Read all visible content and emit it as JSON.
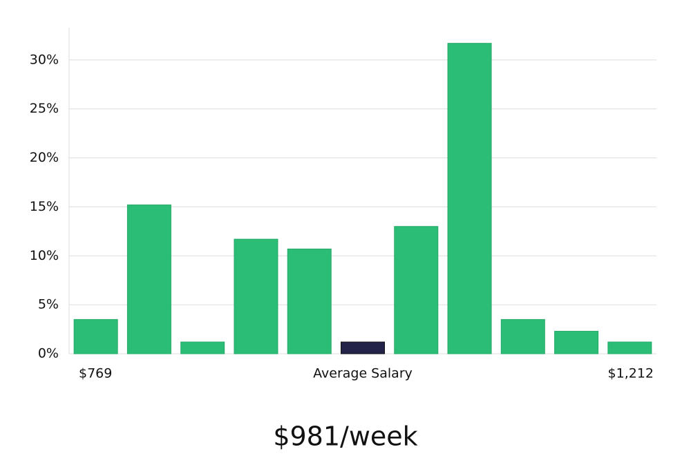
{
  "chart_data": {
    "type": "bar",
    "categories": [
      null,
      null,
      null,
      null,
      null,
      null,
      null,
      null,
      null,
      null,
      null
    ],
    "values": [
      3.5,
      15.2,
      1.2,
      11.7,
      10.7,
      1.2,
      13.0,
      31.7,
      3.5,
      2.3,
      1.2
    ],
    "color": "#2bbd76",
    "highlight_index": 5,
    "highlight_color": "#23234a",
    "ylim": [
      0,
      33.3
    ],
    "yticks": [
      {
        "value": 0,
        "label": "0%"
      },
      {
        "value": 5,
        "label": "5%"
      },
      {
        "value": 10,
        "label": "10%"
      },
      {
        "value": 15,
        "label": "15%"
      },
      {
        "value": 20,
        "label": "20%"
      },
      {
        "value": 25,
        "label": "25%"
      },
      {
        "value": 30,
        "label": "30%"
      }
    ],
    "grid": true,
    "xlabel": "Average Salary",
    "range_labels": [
      "$769",
      "$1,212"
    ],
    "caption": "$981/week"
  }
}
